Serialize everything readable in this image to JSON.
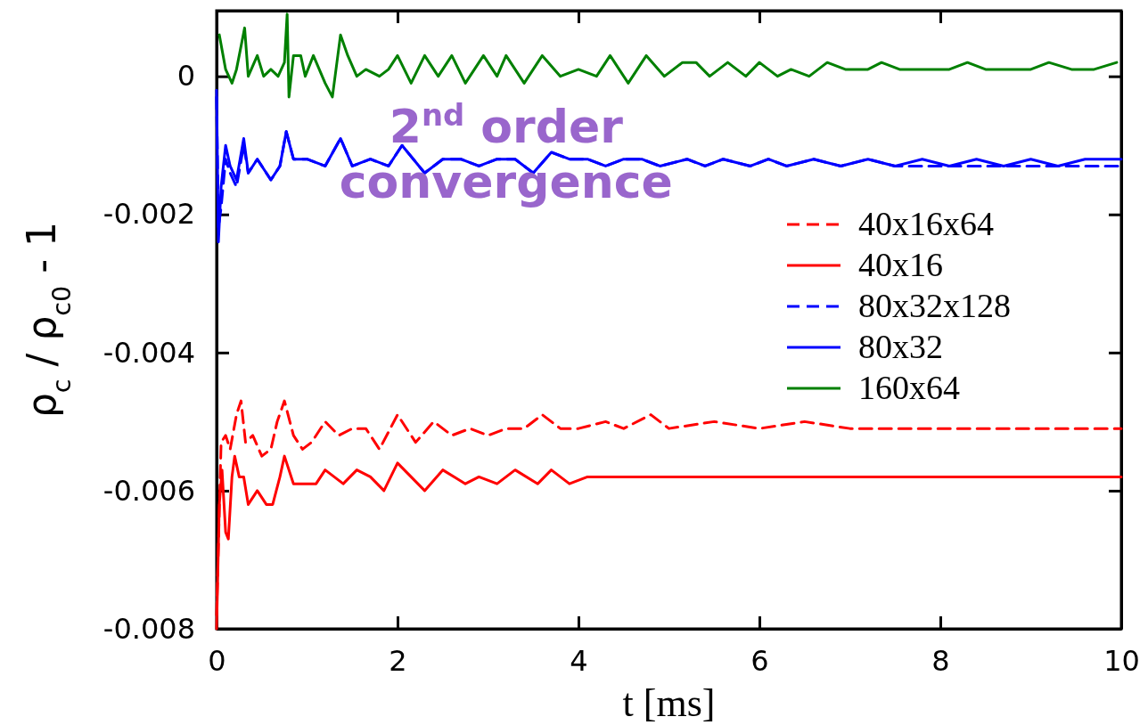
{
  "chart_data": {
    "type": "line",
    "xlabel": "t [ms]",
    "ylabel": "ρ$_{c}$ / ρ$_{c0}$ - 1",
    "xlim": [
      0,
      10
    ],
    "xticks": [
      0,
      2,
      4,
      6,
      8,
      10
    ],
    "ylim": [
      -0.008,
      0.00095
    ],
    "yticks": [
      {
        "value": -0.008,
        "label": "-0.008"
      },
      {
        "value": -0.006,
        "label": "-0.006"
      },
      {
        "value": -0.004,
        "label": "-0.004"
      },
      {
        "value": -0.002,
        "label": "-0.002"
      },
      {
        "value": 0,
        "label": "0"
      }
    ],
    "grid": false,
    "legend": "right",
    "annotations": [
      "2$^{nd}$ order convergence"
    ],
    "series": [
      {
        "name": "40x16x64",
        "color": "#ff0000",
        "line_style": "dashed",
        "x": [
          0.0,
          0.05,
          0.1,
          0.15,
          0.22,
          0.27,
          0.32,
          0.4,
          0.5,
          0.6,
          0.67,
          0.75,
          0.85,
          0.95,
          1.05,
          1.2,
          1.35,
          1.5,
          1.65,
          1.8,
          2.0,
          2.2,
          2.4,
          2.6,
          2.8,
          3.0,
          3.2,
          3.4,
          3.6,
          3.8,
          4.0,
          4.3,
          4.5,
          4.8,
          5.0,
          5.5,
          6,
          6.5,
          7,
          7.5,
          8,
          8.5,
          9,
          9.5,
          10
        ],
        "values": [
          -0.0078,
          -0.0053,
          -0.0052,
          -0.0054,
          -0.0049,
          -0.0047,
          -0.0053,
          -0.0052,
          -0.0055,
          -0.0054,
          -0.005,
          -0.0047,
          -0.0052,
          -0.0054,
          -0.0053,
          -0.005,
          -0.0052,
          -0.0051,
          -0.0051,
          -0.0054,
          -0.0049,
          -0.0053,
          -0.005,
          -0.0052,
          -0.0051,
          -0.0052,
          -0.0051,
          -0.0051,
          -0.0049,
          -0.0051,
          -0.0051,
          -0.005,
          -0.0051,
          -0.0049,
          -0.0051,
          -0.005,
          -0.0051,
          -0.005,
          -0.0051,
          -0.0051,
          -0.0051,
          -0.0051,
          -0.0051,
          -0.0051,
          -0.0051
        ]
      },
      {
        "name": "40x16",
        "color": "#ff0000",
        "line_style": "solid",
        "x": [
          0.0,
          0.03,
          0.06,
          0.1,
          0.13,
          0.17,
          0.2,
          0.25,
          0.3,
          0.35,
          0.45,
          0.55,
          0.62,
          0.7,
          0.75,
          0.85,
          0.95,
          1.1,
          1.2,
          1.4,
          1.55,
          1.7,
          1.85,
          2.0,
          2.15,
          2.3,
          2.5,
          2.75,
          2.9,
          3.1,
          3.3,
          3.55,
          3.7,
          3.9,
          4.1,
          4.4,
          4.6,
          4.9,
          5.2,
          5.6,
          6,
          7,
          8,
          9,
          10
        ],
        "values": [
          -0.008,
          -0.0062,
          -0.0057,
          -0.0066,
          -0.0067,
          -0.0058,
          -0.0055,
          -0.0058,
          -0.0058,
          -0.0062,
          -0.006,
          -0.0062,
          -0.0062,
          -0.0058,
          -0.0055,
          -0.0059,
          -0.0059,
          -0.0059,
          -0.0057,
          -0.0059,
          -0.0057,
          -0.0058,
          -0.006,
          -0.0056,
          -0.0058,
          -0.006,
          -0.0057,
          -0.0059,
          -0.0058,
          -0.0059,
          -0.0057,
          -0.0059,
          -0.0057,
          -0.0059,
          -0.0058,
          -0.0058,
          -0.0058,
          -0.0058,
          -0.0058,
          -0.0058,
          -0.0058,
          -0.0058,
          -0.0058,
          -0.0058,
          -0.0058
        ]
      },
      {
        "name": "80x32x128",
        "color": "#0000ff",
        "line_style": "dashed",
        "x": [
          0.0,
          0.02,
          0.05,
          0.1,
          0.15,
          0.22,
          0.3,
          0.35,
          0.45,
          0.6,
          0.7,
          0.77,
          0.85,
          1.0,
          1.2,
          1.37,
          1.5,
          1.7,
          1.9,
          2.05,
          2.3,
          2.5,
          2.7,
          2.9,
          3.1,
          3.3,
          3.5,
          3.7,
          3.9,
          4.1,
          4.3,
          4.5,
          4.7,
          4.9,
          5.2,
          5.4,
          5.6,
          5.9,
          6.1,
          6.3,
          6.6,
          6.9,
          7.2,
          7.5,
          7.8,
          8.1,
          8.4,
          8.7,
          9.0,
          9.3,
          9.6,
          10
        ],
        "values": [
          -0.0003,
          -0.0022,
          -0.0019,
          -0.0012,
          -0.0014,
          -0.0016,
          -0.001,
          -0.0014,
          -0.0012,
          -0.0015,
          -0.0013,
          -0.0008,
          -0.0012,
          -0.0012,
          -0.0013,
          -0.0009,
          -0.0013,
          -0.0012,
          -0.0013,
          -0.001,
          -0.0014,
          -0.0012,
          -0.0012,
          -0.0013,
          -0.0012,
          -0.0012,
          -0.0014,
          -0.0011,
          -0.0012,
          -0.0012,
          -0.0013,
          -0.0012,
          -0.0012,
          -0.0013,
          -0.0012,
          -0.0013,
          -0.0012,
          -0.0013,
          -0.0012,
          -0.0013,
          -0.0012,
          -0.0013,
          -0.0012,
          -0.0013,
          -0.0013,
          -0.0013,
          -0.0013,
          -0.0013,
          -0.0013,
          -0.0013,
          -0.0013,
          -0.0013
        ]
      },
      {
        "name": "80x32",
        "color": "#0000ff",
        "line_style": "solid",
        "x": [
          0.0,
          0.02,
          0.05,
          0.1,
          0.15,
          0.22,
          0.3,
          0.35,
          0.45,
          0.6,
          0.7,
          0.77,
          0.85,
          1.0,
          1.2,
          1.37,
          1.5,
          1.7,
          1.9,
          2.05,
          2.3,
          2.5,
          2.7,
          2.9,
          3.1,
          3.3,
          3.5,
          3.7,
          3.9,
          4.1,
          4.3,
          4.5,
          4.7,
          4.9,
          5.2,
          5.4,
          5.6,
          5.9,
          6.1,
          6.3,
          6.6,
          6.9,
          7.2,
          7.5,
          7.8,
          8.1,
          8.4,
          8.7,
          9.0,
          9.3,
          9.6,
          10
        ],
        "values": [
          -0.0002,
          -0.0024,
          -0.0016,
          -0.001,
          -0.0013,
          -0.0015,
          -0.0009,
          -0.0014,
          -0.0012,
          -0.0015,
          -0.0013,
          -0.0008,
          -0.0012,
          -0.0012,
          -0.0013,
          -0.0009,
          -0.0013,
          -0.0012,
          -0.0013,
          -0.001,
          -0.0014,
          -0.0012,
          -0.0012,
          -0.0013,
          -0.0012,
          -0.0012,
          -0.0014,
          -0.0011,
          -0.0012,
          -0.0012,
          -0.0013,
          -0.0012,
          -0.0012,
          -0.0013,
          -0.0012,
          -0.0013,
          -0.0012,
          -0.0013,
          -0.0012,
          -0.0013,
          -0.0012,
          -0.0013,
          -0.0012,
          -0.0013,
          -0.0012,
          -0.0013,
          -0.0012,
          -0.0013,
          -0.0012,
          -0.0013,
          -0.0012,
          -0.0012
        ]
      },
      {
        "name": "160x64",
        "color": "#008000",
        "line_style": "solid",
        "x": [
          0.03,
          0.1,
          0.17,
          0.22,
          0.31,
          0.35,
          0.45,
          0.52,
          0.6,
          0.68,
          0.75,
          0.78,
          0.8,
          0.85,
          0.93,
          0.98,
          1.07,
          1.2,
          1.28,
          1.37,
          1.45,
          1.55,
          1.65,
          1.8,
          1.9,
          2.0,
          2.15,
          2.3,
          2.45,
          2.6,
          2.75,
          2.95,
          3.1,
          3.2,
          3.4,
          3.6,
          3.8,
          4.0,
          4.2,
          4.35,
          4.55,
          4.75,
          4.95,
          5.15,
          5.3,
          5.45,
          5.65,
          5.85,
          6.0,
          6.2,
          6.35,
          6.55,
          6.75,
          6.95,
          7.2,
          7.35,
          7.55,
          7.85,
          8.1,
          8.3,
          8.5,
          8.8,
          9.0,
          9.2,
          9.45,
          9.7,
          9.95
        ],
        "values": [
          0.0006,
          0.0001,
          -0.0001,
          0.0001,
          0.0007,
          0.0,
          0.0003,
          0.0,
          0.0001,
          0.0,
          0.0002,
          0.0009,
          -0.0003,
          0.0003,
          0.0003,
          0.0,
          0.0003,
          -0.0001,
          -0.0003,
          0.0006,
          0.0003,
          0.0,
          0.0001,
          0.0,
          0.0001,
          0.0003,
          -0.0001,
          0.0003,
          0.0,
          0.0003,
          -0.0001,
          0.0003,
          0.0,
          0.0003,
          -0.0001,
          0.0003,
          0.0,
          0.0001,
          0.0,
          0.0003,
          -0.0001,
          0.0003,
          0.0,
          0.0002,
          0.0002,
          0.0,
          0.0002,
          0.0,
          0.0002,
          0.0,
          0.0001,
          0.0,
          0.0002,
          0.0001,
          0.0001,
          0.0002,
          0.0001,
          0.0001,
          0.0001,
          0.0002,
          0.0001,
          0.0001,
          0.0001,
          0.0002,
          0.0001,
          0.0001,
          0.0002
        ]
      }
    ]
  }
}
